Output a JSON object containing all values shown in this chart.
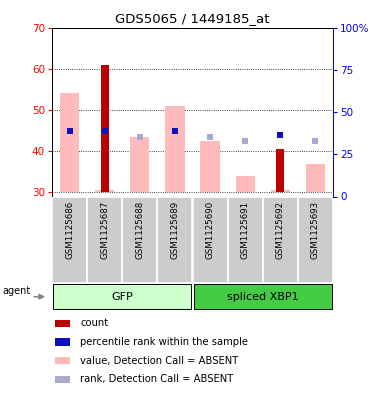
{
  "title": "GDS5065 / 1449185_at",
  "samples": [
    "GSM1125686",
    "GSM1125687",
    "GSM1125688",
    "GSM1125689",
    "GSM1125690",
    "GSM1125691",
    "GSM1125692",
    "GSM1125693"
  ],
  "value_absent_bottom": [
    30.0,
    30.0,
    30.0,
    30.0,
    30.0,
    30.0,
    30.0,
    30.0
  ],
  "value_absent_top": [
    54.0,
    30.5,
    43.5,
    51.0,
    42.5,
    34.0,
    30.5,
    37.0
  ],
  "rank_absent": [
    45.0,
    null,
    43.5,
    45.0,
    43.5,
    42.5,
    null,
    42.5
  ],
  "count_red_top": [
    null,
    61.0,
    null,
    null,
    null,
    null,
    40.5,
    null
  ],
  "percentile_blue": [
    45.0,
    45.0,
    null,
    45.0,
    null,
    null,
    44.0,
    null
  ],
  "ylim": [
    29,
    70
  ],
  "y2lim": [
    0,
    100
  ],
  "yticks_left": [
    30,
    40,
    50,
    60,
    70
  ],
  "yticks_right": [
    0,
    25,
    50,
    75,
    100
  ],
  "bg_color": "#ffffff",
  "color_red_bar": "#bb0000",
  "color_pink_bar": "#ffbbbb",
  "color_blue_square": "#1111bb",
  "color_lavender_square": "#aaaacc",
  "group_spans": [
    {
      "name": "GFP",
      "start": 0,
      "end": 3,
      "color": "#bbffbb"
    },
    {
      "name": "spliced XBP1",
      "start": 4,
      "end": 7,
      "color": "#44cc44"
    }
  ],
  "legend_items": [
    {
      "color": "#bb0000",
      "label": "count"
    },
    {
      "color": "#1111bb",
      "label": "percentile rank within the sample"
    },
    {
      "color": "#ffbbbb",
      "label": "value, Detection Call = ABSENT"
    },
    {
      "color": "#aaaacc",
      "label": "rank, Detection Call = ABSENT"
    }
  ]
}
